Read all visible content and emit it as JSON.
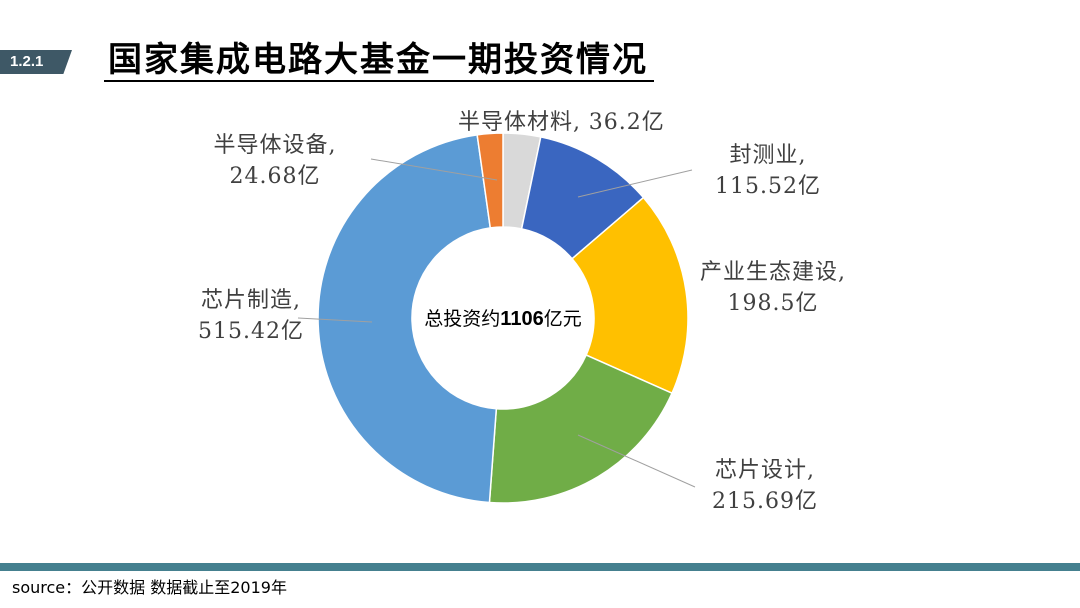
{
  "header": {
    "section_number": "1.2.1",
    "title": "国家集成电路大基金一期投资情况"
  },
  "chart_data": {
    "type": "pie",
    "donut": true,
    "center_label": {
      "prefix": "总投资约",
      "value": "1106",
      "suffix": "亿元"
    },
    "label_separator": ",",
    "slices": [
      {
        "name": "半导体材料",
        "value": 36.2,
        "value_label": "36.2亿",
        "color": "#d9d9d9"
      },
      {
        "name": "封测业",
        "value": 115.52,
        "value_label": "115.52亿",
        "color": "#3a66c0"
      },
      {
        "name": "产业生态建设",
        "value": 198.5,
        "value_label": "198.5亿",
        "color": "#ffc000"
      },
      {
        "name": "芯片设计",
        "value": 215.69,
        "value_label": "215.69亿",
        "color": "#70ad47"
      },
      {
        "name": "芯片制造",
        "value": 515.42,
        "value_label": "515.42亿",
        "color": "#5b9bd5"
      },
      {
        "name": "半导体设备",
        "value": 24.68,
        "value_label": "24.68亿",
        "color": "#ed7d31"
      }
    ]
  },
  "footer": {
    "source": "source：公开数据 数据截止至2019年"
  },
  "theme": {
    "badge_color": "#3e5866",
    "footer_bar_color": "#45808f",
    "label_color": "#404040",
    "leader_line_color": "#a0a0a0",
    "slice_border_color": "#ffffff"
  }
}
